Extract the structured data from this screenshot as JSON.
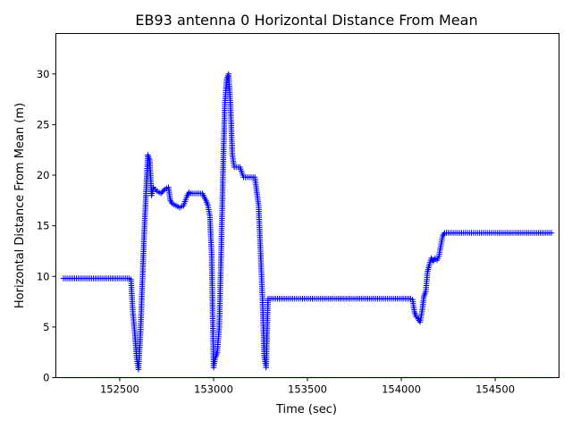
{
  "chart_data": {
    "type": "line",
    "title": "EB93 antenna 0 Horizontal Distance From Mean",
    "xlabel": "Time (sec)",
    "ylabel": "Horizontal Distance From Mean (m)",
    "xlim": [
      152160,
      154840
    ],
    "ylim": [
      0,
      34
    ],
    "xticks": [
      152500,
      153000,
      153500,
      154000,
      154500
    ],
    "xtick_labels": [
      "152500",
      "153000",
      "153500",
      "154000",
      "154500"
    ],
    "yticks": [
      0,
      5,
      10,
      15,
      20,
      25,
      30
    ],
    "ytick_labels": [
      "0",
      "5",
      "10",
      "15",
      "20",
      "25",
      "30"
    ],
    "grid": false,
    "series": [
      {
        "color": "#0000ff",
        "marker": "plus",
        "x": [
          152200,
          152300,
          152400,
          152500,
          152550,
          152560,
          152570,
          152580,
          152590,
          152600,
          152610,
          152620,
          152630,
          152640,
          152650,
          152660,
          152670,
          152680,
          152690,
          152700,
          152720,
          152740,
          152760,
          152770,
          152780,
          152800,
          152820,
          152840,
          152860,
          152870,
          152880,
          152900,
          152920,
          152940,
          152960,
          152970,
          152980,
          152990,
          153000,
          153010,
          153020,
          153030,
          153040,
          153050,
          153060,
          153070,
          153080,
          153090,
          153100,
          153110,
          153120,
          153130,
          153140,
          153160,
          153180,
          153200,
          153220,
          153240,
          153260,
          153270,
          153280,
          153290,
          153300,
          153320,
          153400,
          153600,
          153800,
          154000,
          154050,
          154060,
          154070,
          154080,
          154090,
          154100,
          154110,
          154120,
          154130,
          154140,
          154150,
          154160,
          154170,
          154180,
          154190,
          154200,
          154210,
          154220,
          154230,
          154240,
          154250,
          154300,
          154500,
          154700,
          154800
        ],
        "y": [
          9.8,
          9.8,
          9.8,
          9.8,
          9.8,
          9.7,
          6.5,
          4.5,
          2.0,
          0.8,
          4.0,
          9.0,
          14.0,
          18.0,
          22.0,
          21.5,
          18.0,
          18.8,
          18.6,
          18.4,
          18.2,
          18.6,
          18.8,
          17.5,
          17.2,
          17.0,
          16.8,
          17.0,
          18.0,
          18.3,
          18.2,
          18.2,
          18.2,
          18.2,
          17.5,
          17.0,
          16.0,
          12.0,
          1.0,
          2.0,
          2.5,
          5.0,
          12.0,
          20.0,
          27.0,
          29.5,
          30.0,
          27.0,
          22.0,
          20.8,
          20.8,
          20.8,
          20.8,
          19.8,
          19.8,
          19.8,
          19.8,
          17.0,
          8.0,
          2.0,
          1.0,
          7.8,
          7.8,
          7.8,
          7.8,
          7.8,
          7.8,
          7.8,
          7.8,
          7.7,
          6.5,
          6.0,
          5.8,
          5.5,
          6.5,
          8.0,
          8.5,
          10.5,
          11.2,
          11.8,
          11.5,
          11.8,
          11.6,
          12.0,
          13.0,
          14.0,
          14.3,
          14.3,
          14.3,
          14.3,
          14.3,
          14.3,
          14.3
        ]
      },
      {
        "color": "#00bb00",
        "marker": "none",
        "x": [
          152200,
          154800
        ],
        "y": [
          0,
          0
        ]
      }
    ]
  }
}
